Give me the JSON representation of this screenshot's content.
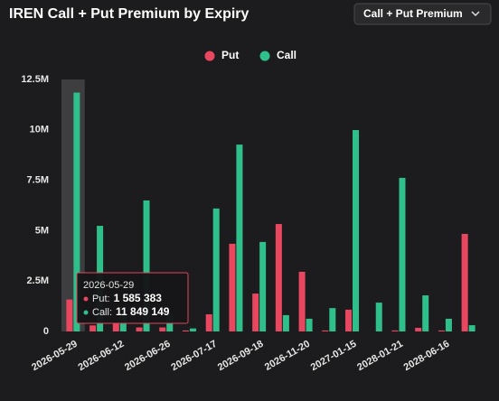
{
  "title": "IREN Call + Put Premium by Expiry",
  "dropdown": "Call + Put Premium",
  "tooltip": {
    "rows": [
      {
        "label": "Put:",
        "value": "1 585 383"
      },
      {
        "label": "Call:",
        "value": "11 849 149"
      }
    ]
  },
  "chart_data": {
    "type": "bar",
    "categories": [
      "2026-05-29",
      null,
      "2026-06-12",
      null,
      "2026-06-26",
      null,
      "2026-07-17",
      null,
      "2026-09-18",
      null,
      "2026-11-20",
      null,
      "2027-01-15",
      null,
      "2028-01-21",
      null,
      "2028-06-16",
      null
    ],
    "series": [
      {
        "name": "Put",
        "color": "#e8475f",
        "values": [
          1585383,
          300000,
          400000,
          200000,
          200000,
          50000,
          850000,
          4350000,
          1880000,
          5330000,
          2960000,
          50000,
          1080000,
          0,
          50000,
          180000,
          50000,
          4840000
        ]
      },
      {
        "name": "Call",
        "color": "#2fbf8a",
        "values": [
          11849149,
          5240000,
          900000,
          6500000,
          900000,
          150000,
          6100000,
          9270000,
          4440000,
          810000,
          630000,
          1160000,
          9990000,
          1430000,
          7620000,
          1790000,
          630000,
          310000
        ]
      }
    ],
    "ylim": [
      0,
      12500000
    ],
    "yticks": [
      0,
      {
        "value": 2500000,
        "label": "2.5M"
      },
      {
        "value": 5000000,
        "label": "5M"
      },
      {
        "value": 7500000,
        "label": "7.5M"
      },
      {
        "value": 10000000,
        "label": "10M"
      },
      {
        "value": 12500000,
        "label": "12.5M"
      }
    ],
    "legend": "top"
  }
}
